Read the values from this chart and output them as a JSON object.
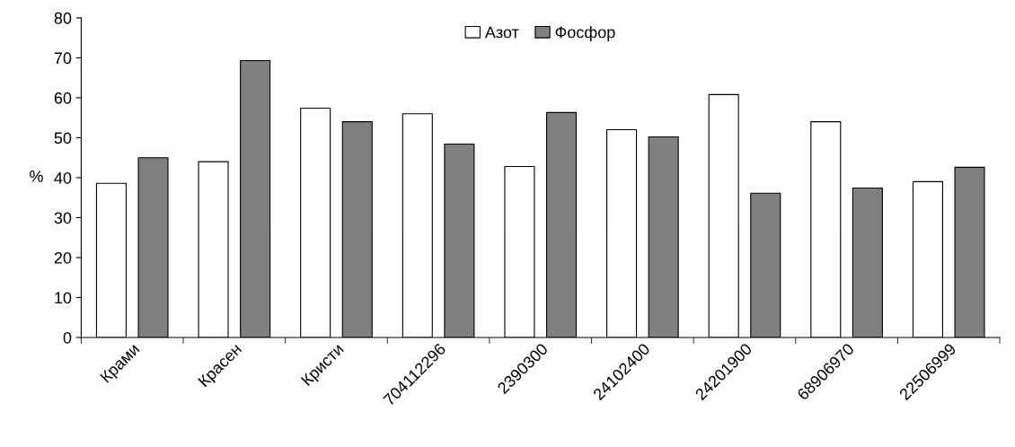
{
  "chart_data": {
    "type": "bar",
    "ylabel": "%",
    "categories": [
      "Крами",
      "Красен",
      "Кристи",
      "704112296",
      "2390300",
      "24102400",
      "24201900",
      "68906970",
      "22506999"
    ],
    "series": [
      {
        "name": "Азот",
        "color": "#ffffff",
        "values": [
          38.6,
          44,
          57.4,
          56,
          42.8,
          52,
          60.8,
          54,
          39
        ]
      },
      {
        "name": "Фосфор",
        "color": "#808080",
        "values": [
          45,
          69.3,
          54,
          48.4,
          56.3,
          50.2,
          36.1,
          37.4,
          42.6
        ]
      }
    ],
    "ylim": [
      0,
      80
    ],
    "yticks": [
      0,
      10,
      20,
      30,
      40,
      50,
      60,
      70,
      80
    ],
    "grid": false,
    "legend": "top"
  }
}
